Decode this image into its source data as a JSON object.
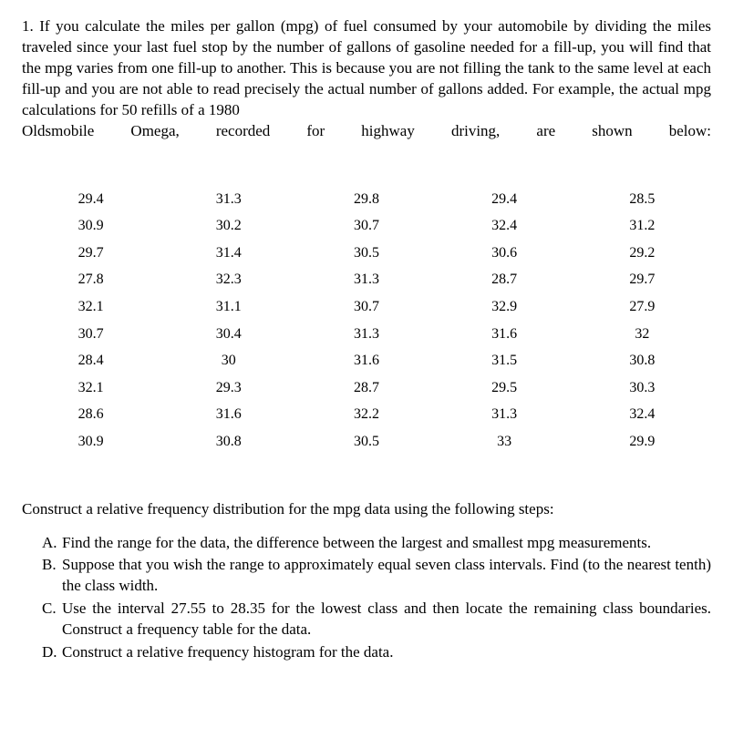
{
  "problem_number": "1.",
  "intro_text_part1": "If you calculate the miles per gallon (mpg) of fuel consumed by your automobile by dividing the miles traveled since your last fuel stop by the number of gallons of gasoline needed for a fill-up, you will find that the mpg varies from one fill-up to another. This is because you are not filling the tank to the same level at each fill-up and you are not able to read precisely the actual number of gallons added. For example, the actual mpg calculations for 50 refills of a 1980",
  "intro_text_part2": "Oldsmobile Omega, recorded for highway driving, are shown below:",
  "data": {
    "type": "table",
    "background_color": "#ffffff",
    "text_color": "#000000",
    "fontsize": 16,
    "columns": 5,
    "column_align": "center",
    "rows": [
      [
        "29.4",
        "31.3",
        "29.8",
        "29.4",
        "28.5"
      ],
      [
        "30.9",
        "30.2",
        "30.7",
        "32.4",
        "31.2"
      ],
      [
        "29.7",
        "31.4",
        "30.5",
        "30.6",
        "29.2"
      ],
      [
        "27.8",
        "32.3",
        "31.3",
        "28.7",
        "29.7"
      ],
      [
        "32.1",
        "31.1",
        "30.7",
        "32.9",
        "27.9"
      ],
      [
        "30.7",
        "30.4",
        "31.3",
        "31.6",
        "32"
      ],
      [
        "28.4",
        "30",
        "31.6",
        "31.5",
        "30.8"
      ],
      [
        "32.1",
        "29.3",
        "28.7",
        "29.5",
        "30.3"
      ],
      [
        "28.6",
        "31.6",
        "32.2",
        "31.3",
        "32.4"
      ],
      [
        "30.9",
        "30.8",
        "30.5",
        "33",
        "29.9"
      ]
    ]
  },
  "instruction_text": "Construct a relative frequency distribution for the mpg data using the following steps:",
  "steps": [
    {
      "letter": "A.",
      "text": "Find the range for the data, the difference between the largest and smallest mpg measurements."
    },
    {
      "letter": "B.",
      "text": "Suppose that you wish the range to approximately equal seven class intervals. Find (to the nearest tenth) the class width."
    },
    {
      "letter": "C.",
      "text": "Use the interval 27.55 to 28.35 for the lowest class and then locate the remaining class boundaries. Construct a frequency table for the data."
    },
    {
      "letter": "D.",
      "text": " Construct a relative frequency histogram for the data."
    }
  ],
  "typography": {
    "font_family": "Georgia, Times New Roman, serif",
    "body_fontsize": 17,
    "line_height": 1.35
  },
  "colors": {
    "background": "#ffffff",
    "text": "#000000"
  }
}
